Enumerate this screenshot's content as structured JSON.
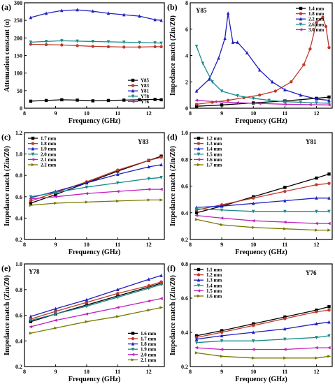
{
  "chart_data": [
    {
      "type": "line",
      "panel_label": "(a)",
      "xlabel": "Frequency (GHz)",
      "ylabel": "Attenuation constant (α)",
      "xlim": [
        8,
        12.5
      ],
      "ylim": [
        0,
        300
      ],
      "xticks": [
        8,
        9,
        10,
        11,
        12
      ],
      "yticks": [
        0,
        50,
        100,
        150,
        200,
        250,
        300
      ],
      "legend_position": "bottom-right",
      "series": [
        {
          "name": "Y85",
          "color": "#000000",
          "marker": "square",
          "x": [
            8.2,
            8.7,
            9.2,
            9.7,
            10.2,
            10.7,
            11.2,
            11.7,
            12.2,
            12.4
          ],
          "y": [
            20,
            22,
            24,
            23,
            21,
            22,
            23,
            24,
            25,
            24
          ]
        },
        {
          "name": "Y83",
          "color": "#c0392b",
          "marker": "circle",
          "x": [
            8.2,
            8.7,
            9.2,
            9.7,
            10.2,
            10.7,
            11.2,
            11.7,
            12.2,
            12.4
          ],
          "y": [
            182,
            181,
            180,
            178,
            176,
            175,
            174,
            174,
            175,
            175
          ]
        },
        {
          "name": "Y81",
          "color": "#1f1fbf",
          "marker": "triangle-up",
          "x": [
            8.2,
            8.7,
            9.2,
            9.7,
            10.2,
            10.7,
            11.2,
            11.7,
            12.2,
            12.4
          ],
          "y": [
            258,
            270,
            278,
            280,
            276,
            270,
            266,
            262,
            252,
            250
          ]
        },
        {
          "name": "Y78",
          "color": "#1a8a8a",
          "marker": "triangle-down",
          "x": [
            8.2,
            8.7,
            9.2,
            9.7,
            10.2,
            10.7,
            11.2,
            11.7,
            12.2,
            12.4
          ],
          "y": [
            188,
            190,
            192,
            191,
            190,
            189,
            188,
            187,
            186,
            185
          ]
        },
        {
          "name": "Y76",
          "color": "#c020c0",
          "marker": "triangle-left",
          "x": [
            8.2,
            8.7,
            9.2,
            9.7,
            10.2,
            10.7,
            11.2,
            11.7,
            12.2,
            12.4
          ],
          "y": [
            312,
            318,
            322,
            325,
            326,
            326,
            325,
            323,
            320,
            318
          ]
        }
      ]
    },
    {
      "type": "line",
      "panel_label": "(b)",
      "sample": "Y85",
      "xlabel": "Frequency (GHz)",
      "ylabel": "Impedance match (Zin/Z0)",
      "xlim": [
        8,
        12.5
      ],
      "ylim": [
        0,
        8
      ],
      "xticks": [
        8,
        9,
        10,
        11,
        12
      ],
      "yticks": [
        0,
        2,
        4,
        6,
        8
      ],
      "legend_position": "top-right",
      "series": [
        {
          "name": "1.4 mm",
          "color": "#000000",
          "marker": "square",
          "x": [
            8.2,
            9,
            10,
            11,
            12,
            12.4
          ],
          "y": [
            0.15,
            0.25,
            0.4,
            0.55,
            0.75,
            0.85
          ]
        },
        {
          "name": "1.8 mm",
          "color": "#c0392b",
          "marker": "circle",
          "x": [
            8.2,
            8.7,
            9.2,
            9.7,
            10.2,
            10.7,
            11.2,
            11.6,
            11.8,
            12.0,
            12.2,
            12.3,
            12.4
          ],
          "y": [
            0.3,
            0.45,
            0.6,
            0.8,
            1.0,
            1.3,
            2.0,
            3.3,
            4.5,
            6.5,
            6.9,
            6.2,
            4.6
          ]
        },
        {
          "name": "2.2 mm",
          "color": "#1f1fbf",
          "marker": "triangle-up",
          "x": [
            8.2,
            8.6,
            8.9,
            9.1,
            9.2,
            9.35,
            9.5,
            9.8,
            10.2,
            10.6,
            11,
            11.5,
            12,
            12.4
          ],
          "y": [
            1.3,
            2.2,
            3.8,
            5.3,
            7.2,
            5.0,
            5.0,
            4.2,
            2.9,
            2.0,
            1.4,
            1.0,
            0.7,
            0.6
          ]
        },
        {
          "name": "2.6 mm",
          "color": "#1a8a8a",
          "marker": "triangle-down",
          "x": [
            8.2,
            8.4,
            8.7,
            9.0,
            9.5,
            10,
            10.5,
            11,
            11.5,
            12,
            12.4
          ],
          "y": [
            4.7,
            3.4,
            2.0,
            1.3,
            0.95,
            0.75,
            0.6,
            0.5,
            0.45,
            0.4,
            0.38
          ]
        },
        {
          "name": "3.0 mm",
          "color": "#c020c0",
          "marker": "triangle-left",
          "x": [
            8.2,
            8.8,
            9.5,
            10.2,
            11,
            11.8,
            12.4
          ],
          "y": [
            0.6,
            0.5,
            0.42,
            0.36,
            0.3,
            0.27,
            0.25
          ]
        }
      ]
    },
    {
      "type": "line",
      "panel_label": "(c)",
      "sample": "Y83",
      "xlabel": "Frequency (GHz)",
      "ylabel": "Impedance match (Zin/Z0)",
      "xlim": [
        8,
        12.5
      ],
      "ylim": [
        0.2,
        1.2
      ],
      "xticks": [
        8,
        9,
        10,
        11,
        12
      ],
      "yticks": [
        0.2,
        0.4,
        0.6,
        0.8,
        1.0,
        1.2
      ],
      "legend_position": "top-left",
      "series": [
        {
          "name": "1.7 mm",
          "color": "#000000",
          "marker": "square",
          "x": [
            8.2,
            9,
            10,
            11,
            12,
            12.4
          ],
          "y": [
            0.54,
            0.62,
            0.73,
            0.84,
            0.94,
            0.98
          ]
        },
        {
          "name": "1.8 mm",
          "color": "#c0392b",
          "marker": "circle",
          "x": [
            8.2,
            9,
            10,
            11,
            12,
            12.4
          ],
          "y": [
            0.56,
            0.64,
            0.74,
            0.85,
            0.94,
            0.97
          ]
        },
        {
          "name": "1.9 mm",
          "color": "#1f1fbf",
          "marker": "triangle-up",
          "x": [
            8.2,
            9,
            10,
            11,
            12,
            12.4
          ],
          "y": [
            0.59,
            0.65,
            0.73,
            0.81,
            0.88,
            0.9
          ]
        },
        {
          "name": "2.0 mm",
          "color": "#1a8a8a",
          "marker": "triangle-down",
          "x": [
            8.2,
            9,
            10,
            11,
            12,
            12.4
          ],
          "y": [
            0.6,
            0.64,
            0.69,
            0.73,
            0.77,
            0.78
          ]
        },
        {
          "name": "2.1 mm",
          "color": "#c020c0",
          "marker": "triangle-left",
          "x": [
            8.2,
            9,
            10,
            11,
            12,
            12.4
          ],
          "y": [
            0.58,
            0.6,
            0.63,
            0.65,
            0.67,
            0.67
          ]
        },
        {
          "name": "2.2 mm",
          "color": "#7a7a00",
          "marker": "triangle-right",
          "x": [
            8.2,
            9,
            10,
            11,
            12,
            12.4
          ],
          "y": [
            0.52,
            0.54,
            0.55,
            0.56,
            0.57,
            0.57
          ]
        }
      ]
    },
    {
      "type": "line",
      "panel_label": "(d)",
      "sample": "Y81",
      "xlabel": "Frequency (GHz)",
      "ylabel": "Impedance match (Zin/Z0)",
      "xlim": [
        8,
        12.5
      ],
      "ylim": [
        0.2,
        1.0
      ],
      "xticks": [
        8,
        9,
        10,
        11,
        12
      ],
      "yticks": [
        0.2,
        0.4,
        0.6,
        0.8,
        1.0
      ],
      "legend_position": "top-left",
      "series": [
        {
          "name": "1.2 mm",
          "color": "#000000",
          "marker": "square",
          "x": [
            8.2,
            9,
            10,
            11,
            12,
            12.4
          ],
          "y": [
            0.4,
            0.45,
            0.52,
            0.59,
            0.66,
            0.69
          ]
        },
        {
          "name": "1.3 mm",
          "color": "#c0392b",
          "marker": "circle",
          "x": [
            8.2,
            9,
            10,
            11,
            12,
            12.4
          ],
          "y": [
            0.42,
            0.46,
            0.51,
            0.56,
            0.61,
            0.62
          ]
        },
        {
          "name": "1.4 mm",
          "color": "#1f1fbf",
          "marker": "triangle-up",
          "x": [
            8.2,
            9,
            10,
            11,
            12,
            12.4
          ],
          "y": [
            0.44,
            0.45,
            0.47,
            0.49,
            0.51,
            0.51
          ]
        },
        {
          "name": "1.5 mm",
          "color": "#1a8a8a",
          "marker": "triangle-down",
          "x": [
            8.2,
            9,
            10,
            11,
            12,
            12.4
          ],
          "y": [
            0.43,
            0.42,
            0.41,
            0.41,
            0.41,
            0.41
          ]
        },
        {
          "name": "1.6 mm",
          "color": "#c020c0",
          "marker": "triangle-left",
          "x": [
            8.2,
            9,
            10,
            11,
            12,
            12.4
          ],
          "y": [
            0.38,
            0.36,
            0.34,
            0.33,
            0.32,
            0.32
          ]
        },
        {
          "name": "1.7 mm",
          "color": "#7a7a00",
          "marker": "triangle-right",
          "x": [
            8.2,
            9,
            10,
            11,
            12,
            12.4
          ],
          "y": [
            0.35,
            0.31,
            0.29,
            0.28,
            0.27,
            0.27
          ]
        }
      ]
    },
    {
      "type": "line",
      "panel_label": "(e)",
      "sample": "Y78",
      "xlabel": "Frequency (GHz)",
      "ylabel": "Impedance match (Zin/Z0)",
      "xlim": [
        8,
        12.5
      ],
      "ylim": [
        0.2,
        1.0
      ],
      "xticks": [
        8,
        9,
        10,
        11,
        12
      ],
      "yticks": [
        0.2,
        0.4,
        0.6,
        0.8,
        1.0
      ],
      "legend_position": "bottom-right",
      "series": [
        {
          "name": "1.6 mm",
          "color": "#000000",
          "marker": "square",
          "x": [
            8.2,
            9,
            10,
            11,
            12,
            12.4
          ],
          "y": [
            0.55,
            0.61,
            0.68,
            0.75,
            0.82,
            0.85
          ]
        },
        {
          "name": "1.7 mm",
          "color": "#c0392b",
          "marker": "circle",
          "x": [
            8.2,
            9,
            10,
            11,
            12,
            12.4
          ],
          "y": [
            0.57,
            0.63,
            0.7,
            0.77,
            0.83,
            0.86
          ]
        },
        {
          "name": "1.8 mm",
          "color": "#1f1fbf",
          "marker": "triangle-up",
          "x": [
            8.2,
            9,
            10,
            11,
            12,
            12.4
          ],
          "y": [
            0.59,
            0.65,
            0.72,
            0.8,
            0.88,
            0.91
          ]
        },
        {
          "name": "1.9 mm",
          "color": "#1a8a8a",
          "marker": "triangle-down",
          "x": [
            8.2,
            9,
            10,
            11,
            12,
            12.4
          ],
          "y": [
            0.56,
            0.61,
            0.67,
            0.74,
            0.81,
            0.84
          ]
        },
        {
          "name": "2.0 mm",
          "color": "#c020c0",
          "marker": "triangle-left",
          "x": [
            8.2,
            9,
            10,
            11,
            12,
            12.4
          ],
          "y": [
            0.51,
            0.56,
            0.61,
            0.66,
            0.71,
            0.73
          ]
        },
        {
          "name": "2.1 mm",
          "color": "#7a7a00",
          "marker": "triangle-right",
          "x": [
            8.2,
            9,
            10,
            11,
            12,
            12.4
          ],
          "y": [
            0.46,
            0.5,
            0.55,
            0.59,
            0.64,
            0.66
          ]
        }
      ]
    },
    {
      "type": "line",
      "panel_label": "(f)",
      "sample": "Y76",
      "xlabel": "Frequency (GHz)",
      "ylabel": "Impedance match (Zin/Z0)",
      "xlim": [
        8,
        12.5
      ],
      "ylim": [
        0.2,
        0.8
      ],
      "xticks": [
        8,
        9,
        10,
        11,
        12
      ],
      "yticks": [
        0.2,
        0.4,
        0.6,
        0.8
      ],
      "legend_position": "top-left",
      "series": [
        {
          "name": "1.1 mm",
          "color": "#000000",
          "marker": "square",
          "x": [
            8.2,
            9,
            10,
            11,
            12,
            12.4
          ],
          "y": [
            0.38,
            0.41,
            0.45,
            0.49,
            0.53,
            0.55
          ]
        },
        {
          "name": "1.2 mm",
          "color": "#c0392b",
          "marker": "circle",
          "x": [
            8.2,
            9,
            10,
            11,
            12,
            12.4
          ],
          "y": [
            0.37,
            0.4,
            0.44,
            0.48,
            0.52,
            0.53
          ]
        },
        {
          "name": "1.3 mm",
          "color": "#1f1fbf",
          "marker": "triangle-up",
          "x": [
            8.2,
            9,
            10,
            11,
            12,
            12.4
          ],
          "y": [
            0.36,
            0.38,
            0.4,
            0.42,
            0.45,
            0.46
          ]
        },
        {
          "name": "1.4 mm",
          "color": "#1a8a8a",
          "marker": "triangle-down",
          "x": [
            8.2,
            9,
            10,
            11,
            12,
            12.4
          ],
          "y": [
            0.34,
            0.35,
            0.35,
            0.36,
            0.37,
            0.38
          ]
        },
        {
          "name": "1.5 mm",
          "color": "#c020c0",
          "marker": "triangle-left",
          "x": [
            8.2,
            9,
            10,
            11,
            12,
            12.4
          ],
          "y": [
            0.31,
            0.3,
            0.3,
            0.3,
            0.31,
            0.31
          ]
        },
        {
          "name": "1.6 mm",
          "color": "#7a7a00",
          "marker": "triangle-right",
          "x": [
            8.2,
            9,
            10,
            11,
            12,
            12.4
          ],
          "y": [
            0.28,
            0.26,
            0.25,
            0.25,
            0.25,
            0.26
          ]
        }
      ]
    }
  ]
}
